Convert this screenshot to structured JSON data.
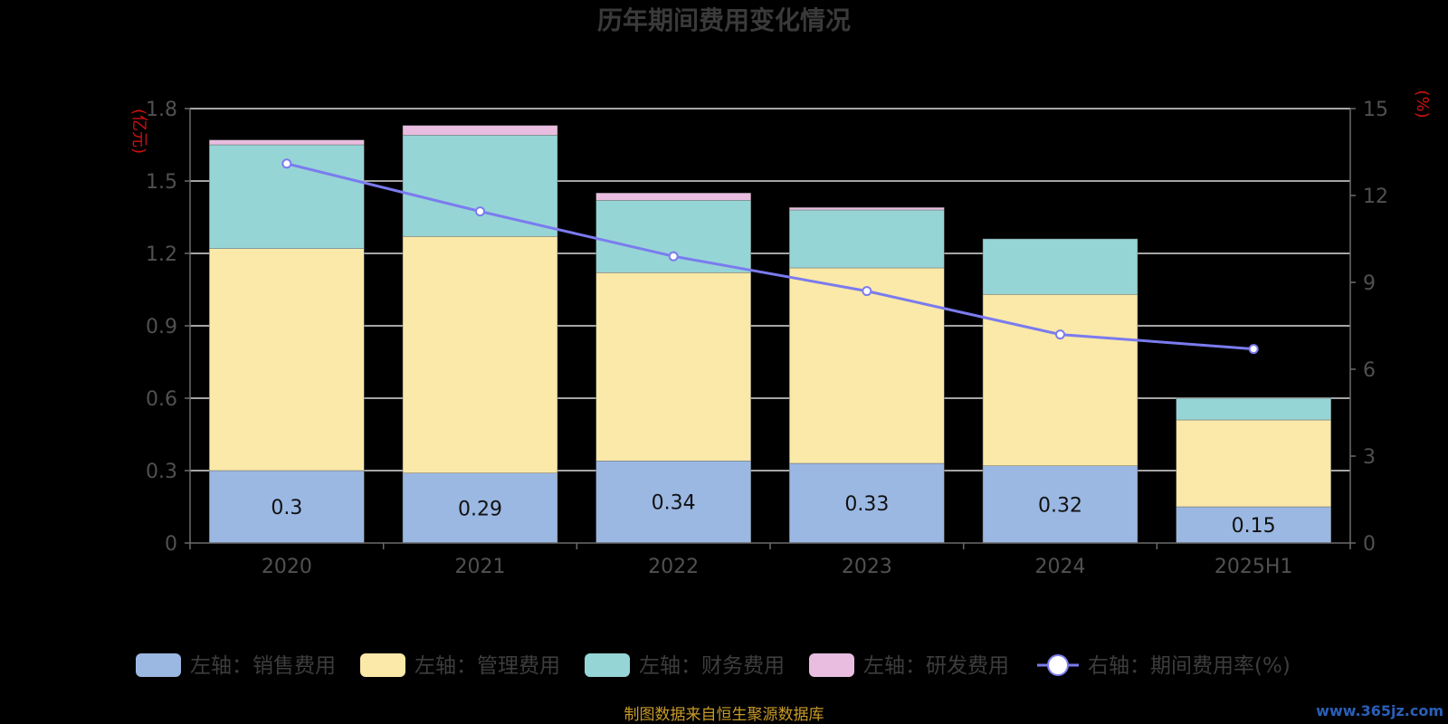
{
  "chart_data": {
    "type": "bar",
    "title": "历年期间费用变化情况",
    "categories": [
      "2020",
      "2021",
      "2022",
      "2023",
      "2024",
      "2025H1"
    ],
    "left_axis": {
      "unit": "(亿元)",
      "ylim": [
        0,
        1.8
      ],
      "ticks": [
        "0",
        "0.3",
        "0.6",
        "0.9",
        "1.2",
        "1.5",
        "1.8"
      ]
    },
    "right_axis": {
      "unit": "(%)",
      "ylim": [
        0,
        15
      ],
      "ticks": [
        "0",
        "3",
        "6",
        "9",
        "12",
        "15"
      ]
    },
    "series": [
      {
        "name": "左轴：销售费用",
        "type": "bar",
        "stack": true,
        "color": "#9bb8e3",
        "values": [
          0.3,
          0.29,
          0.34,
          0.33,
          0.32,
          0.15
        ],
        "labels": [
          "0.3",
          "0.29",
          "0.34",
          "0.33",
          "0.32",
          "0.15"
        ]
      },
      {
        "name": "左轴：管理费用",
        "type": "bar",
        "stack": true,
        "color": "#fae9a8",
        "values": [
          0.92,
          0.98,
          0.78,
          0.81,
          0.71,
          0.36
        ]
      },
      {
        "name": "左轴：财务费用",
        "type": "bar",
        "stack": true,
        "color": "#96d5d6",
        "values": [
          0.43,
          0.42,
          0.3,
          0.24,
          0.23,
          0.09
        ]
      },
      {
        "name": "左轴：研发费用",
        "type": "bar",
        "stack": true,
        "color": "#e9bde0",
        "values": [
          0.02,
          0.04,
          0.03,
          0.01,
          0.0,
          0.0
        ]
      },
      {
        "name": "右轴：期间费用率(%)",
        "type": "line",
        "axis": "right",
        "color": "#7b7bef",
        "values": [
          13.1,
          11.45,
          9.9,
          8.7,
          7.2,
          6.7
        ]
      }
    ],
    "grid": true,
    "legend_position": "bottom"
  },
  "footer": {
    "source": "制图数据来自恒生聚源数据库",
    "watermark": "www.365jz.com"
  }
}
